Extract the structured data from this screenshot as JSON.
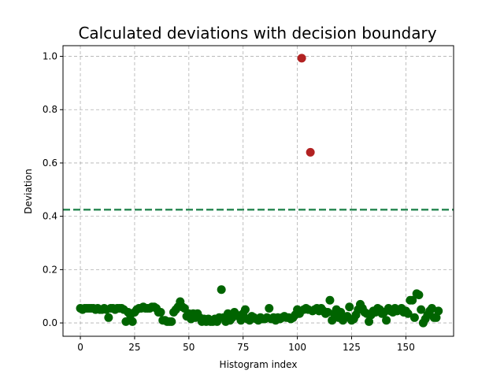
{
  "chart_data": {
    "type": "scatter",
    "title": "Calculated deviations with decision boundary",
    "xlabel": "Histogram index",
    "ylabel": "Deviation",
    "xlim": [
      -8,
      172
    ],
    "ylim": [
      -0.05,
      1.04
    ],
    "xticks": [
      0,
      25,
      50,
      75,
      100,
      125,
      150
    ],
    "yticks": [
      0.0,
      0.2,
      0.4,
      0.6,
      0.8,
      1.0
    ],
    "xtick_labels": [
      "0",
      "25",
      "50",
      "75",
      "100",
      "125",
      "150"
    ],
    "ytick_labels": [
      "0.0",
      "0.2",
      "0.4",
      "0.6",
      "0.8",
      "1.0"
    ],
    "grid": true,
    "decision_boundary": 0.425,
    "colors": {
      "normal": "#006400",
      "anomaly": "#b22222",
      "boundary": "#2e8b57",
      "grid": "#b0b0b0"
    },
    "series": [
      {
        "role": "normal",
        "x": [
          0,
          1,
          2,
          3,
          4,
          5,
          6,
          7,
          8,
          9,
          10,
          11,
          12,
          13,
          14,
          15,
          16,
          17,
          18,
          19,
          20,
          21,
          22,
          23,
          24,
          25,
          26,
          27,
          28,
          29,
          30,
          31,
          32,
          33,
          34,
          35,
          36,
          37,
          38,
          39,
          40,
          41,
          42,
          43,
          44,
          45,
          46,
          47,
          48,
          49,
          50,
          51,
          52,
          53,
          54,
          55,
          56,
          57,
          58,
          59,
          60,
          61,
          62,
          63,
          64,
          65,
          66,
          67,
          68,
          69,
          70,
          71,
          72,
          73,
          74,
          75,
          76,
          77,
          78,
          79,
          80,
          81,
          82,
          83,
          84,
          85,
          86,
          87,
          88,
          89,
          90,
          91,
          92,
          93,
          94,
          95,
          96,
          97,
          98,
          99,
          100,
          101,
          103,
          104,
          105,
          107,
          108,
          109,
          110,
          111,
          112,
          113,
          114,
          115,
          116,
          117,
          118,
          119,
          120,
          121,
          122,
          123,
          124,
          125,
          126,
          127,
          128,
          129,
          130,
          131,
          132,
          133,
          134,
          135,
          136,
          137,
          138,
          139,
          140,
          141,
          142,
          143,
          144,
          145,
          146,
          147,
          148,
          149,
          150,
          151,
          152,
          153,
          154,
          155,
          156,
          157,
          158,
          159,
          160,
          161,
          162,
          163,
          164,
          165
        ],
        "y": [
          0.055,
          0.05,
          0.055,
          0.055,
          0.055,
          0.055,
          0.055,
          0.05,
          0.055,
          0.05,
          0.05,
          0.055,
          0.05,
          0.02,
          0.055,
          0.055,
          0.05,
          0.055,
          0.055,
          0.055,
          0.05,
          0.005,
          0.04,
          0.03,
          0.005,
          0.04,
          0.05,
          0.055,
          0.055,
          0.06,
          0.055,
          0.055,
          0.055,
          0.06,
          0.06,
          0.055,
          0.04,
          0.04,
          0.01,
          0.01,
          0.005,
          0.005,
          0.005,
          0.04,
          0.05,
          0.06,
          0.08,
          0.06,
          0.055,
          0.025,
          0.035,
          0.015,
          0.035,
          0.02,
          0.035,
          0.02,
          0.005,
          0.015,
          0.005,
          0.015,
          0.005,
          0.005,
          0.015,
          0.005,
          0.02,
          0.125,
          0.02,
          0.005,
          0.035,
          0.01,
          0.02,
          0.04,
          0.03,
          0.025,
          0.01,
          0.035,
          0.05,
          0.015,
          0.01,
          0.025,
          0.02,
          0.015,
          0.01,
          0.02,
          0.015,
          0.015,
          0.02,
          0.055,
          0.015,
          0.02,
          0.01,
          0.02,
          0.015,
          0.02,
          0.025,
          0.02,
          0.02,
          0.015,
          0.02,
          0.03,
          0.05,
          0.035,
          0.05,
          0.055,
          0.05,
          0.045,
          0.05,
          0.055,
          0.045,
          0.055,
          0.045,
          0.035,
          0.04,
          0.085,
          0.01,
          0.035,
          0.05,
          0.02,
          0.04,
          0.01,
          0.02,
          0.025,
          0.06,
          0.01,
          0.015,
          0.03,
          0.05,
          0.07,
          0.055,
          0.04,
          0.035,
          0.005,
          0.03,
          0.045,
          0.04,
          0.055,
          0.05,
          0.035,
          0.04,
          0.01,
          0.055,
          0.045,
          0.04,
          0.055,
          0.045,
          0.05,
          0.055,
          0.04,
          0.045,
          0.035,
          0.085,
          0.085,
          0.02,
          0.11,
          0.105,
          0.05,
          0.0,
          0.015,
          0.03,
          0.045,
          0.055,
          0.02,
          0.02,
          0.045
        ]
      },
      {
        "role": "anomaly",
        "x": [
          102,
          106
        ],
        "y": [
          0.993,
          0.64
        ]
      }
    ]
  }
}
